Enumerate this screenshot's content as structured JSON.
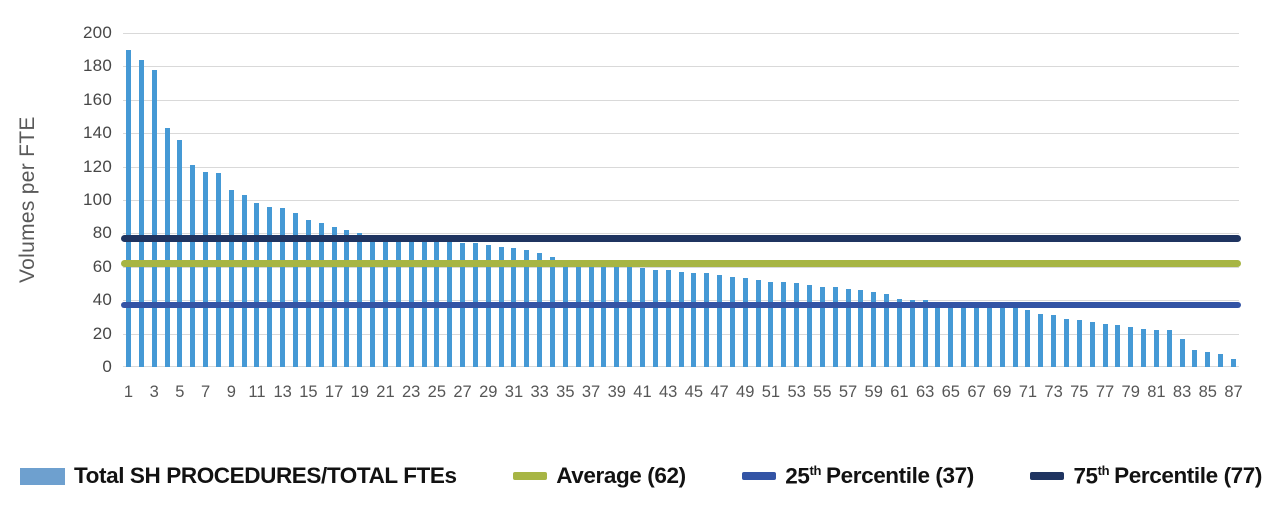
{
  "figure_bg": "#ffffff",
  "chart_data": {
    "type": "bar",
    "title": "",
    "xlabel": "",
    "ylabel": "Volumes per FTE",
    "ylim": [
      0,
      200
    ],
    "ytick_step": 20,
    "yticks": [
      0,
      20,
      40,
      60,
      80,
      100,
      120,
      140,
      160,
      180,
      200
    ],
    "xticks": [
      1,
      3,
      5,
      7,
      9,
      11,
      13,
      15,
      17,
      19,
      21,
      23,
      25,
      27,
      29,
      31,
      33,
      35,
      37,
      39,
      41,
      43,
      45,
      47,
      49,
      51,
      53,
      55,
      57,
      59,
      61,
      63,
      65,
      67,
      69,
      71,
      73,
      75,
      77,
      79,
      81,
      83,
      85,
      87
    ],
    "n_bars": 87,
    "categories": [
      1,
      2,
      3,
      4,
      5,
      6,
      7,
      8,
      9,
      10,
      11,
      12,
      13,
      14,
      15,
      16,
      17,
      18,
      19,
      20,
      21,
      22,
      23,
      24,
      25,
      26,
      27,
      28,
      29,
      30,
      31,
      32,
      33,
      34,
      35,
      36,
      37,
      38,
      39,
      40,
      41,
      42,
      43,
      44,
      45,
      46,
      47,
      48,
      49,
      50,
      51,
      52,
      53,
      54,
      55,
      56,
      57,
      58,
      59,
      60,
      61,
      62,
      63,
      64,
      65,
      66,
      67,
      68,
      69,
      70,
      71,
      72,
      73,
      74,
      75,
      76,
      77,
      78,
      79,
      80,
      81,
      82,
      83,
      84,
      85,
      86,
      87
    ],
    "series": [
      {
        "name": "Total SH PROCEDURES/TOTAL FTEs",
        "values": [
          190,
          184,
          178,
          143,
          136,
          121,
          117,
          116,
          106,
          103,
          98,
          96,
          95,
          92,
          88,
          86,
          84,
          82,
          80,
          79,
          78,
          77,
          77,
          76,
          75,
          75,
          74,
          74,
          73,
          72,
          71,
          70,
          68,
          66,
          64,
          62,
          62,
          61,
          60,
          60,
          59,
          58,
          58,
          57,
          56,
          56,
          55,
          54,
          53,
          52,
          51,
          51,
          50,
          49,
          48,
          48,
          47,
          46,
          45,
          44,
          41,
          40,
          40,
          39,
          38,
          38,
          37,
          37,
          37,
          36,
          34,
          32,
          31,
          29,
          28,
          27,
          26,
          25,
          24,
          23,
          22,
          22,
          17,
          10,
          9,
          8,
          5
        ]
      }
    ],
    "reference_lines": [
      {
        "name": "average-line",
        "value": 62,
        "color": "#a7b544",
        "thickness": 7,
        "legend_label": "Average (62)"
      },
      {
        "name": "p25-line",
        "value": 37,
        "color": "#3354a5",
        "thickness": 6,
        "legend_label": "25th Percentile (37)"
      },
      {
        "name": "p75-line",
        "value": 77,
        "color": "#1f3460",
        "thickness": 7,
        "legend_label": "75th Percentile (77)"
      }
    ],
    "bar_color": "#4599d5",
    "grid": true,
    "gridline_color": "#d9d9d9",
    "legend_position": "bottom"
  },
  "axes": {
    "ylabel": "Volumes per FTE"
  },
  "legend": {
    "series": {
      "label": "Total SH PROCEDURES/TOTAL FTEs",
      "swatch_color": "#6ea0cf"
    },
    "average": {
      "label": "Average (62)",
      "color": "#a7b544"
    },
    "p25": {
      "num": "25",
      "sup": "th",
      "rest": "Percentile (37)",
      "color": "#3354a5"
    },
    "p75": {
      "num": "75",
      "sup": "th",
      "rest": "Percentile (77)",
      "color": "#1f3460"
    }
  }
}
